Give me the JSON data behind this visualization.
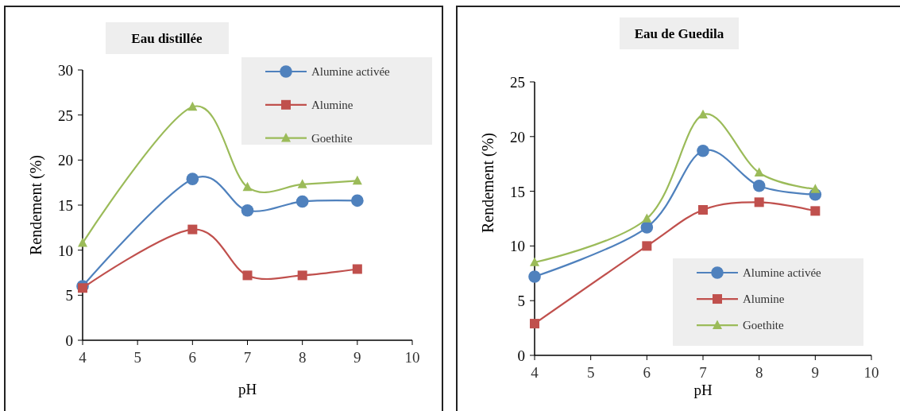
{
  "chart_data": [
    {
      "type": "line",
      "title": "Eau distillée",
      "xlabel": "pH",
      "ylabel": "Rendement (%)",
      "x": [
        4,
        6,
        7,
        8,
        9
      ],
      "xlim": [
        4,
        10
      ],
      "xticks": [
        4,
        5,
        6,
        7,
        8,
        9,
        10
      ],
      "ylim": [
        0,
        30
      ],
      "yticks": [
        0,
        5,
        10,
        15,
        20,
        25,
        30
      ],
      "legend": "top right",
      "grid": false,
      "series": [
        {
          "name": "Alumine activée",
          "color": "#4f81bd",
          "marker": "circle",
          "values": [
            6.0,
            17.9,
            14.4,
            15.4,
            15.5
          ]
        },
        {
          "name": "Alumine",
          "color": "#c0504d",
          "marker": "square",
          "values": [
            5.8,
            12.3,
            7.2,
            7.2,
            7.9
          ]
        },
        {
          "name": "Goethite",
          "color": "#9bbb59",
          "marker": "triangle",
          "values": [
            10.8,
            25.9,
            17.0,
            17.3,
            17.7
          ]
        }
      ]
    },
    {
      "type": "line",
      "title": "Eau de Guedila",
      "xlabel": "pH",
      "ylabel": "Rendement (%)",
      "x": [
        4,
        6,
        7,
        8,
        9
      ],
      "xlim": [
        4,
        10
      ],
      "xticks": [
        4,
        5,
        6,
        7,
        8,
        9,
        10
      ],
      "ylim": [
        0,
        25
      ],
      "yticks": [
        0,
        5,
        10,
        15,
        20,
        25
      ],
      "legend": "bottom right",
      "grid": false,
      "series": [
        {
          "name": "Alumine activée",
          "color": "#4f81bd",
          "marker": "circle",
          "values": [
            7.2,
            11.7,
            18.7,
            15.5,
            14.7
          ]
        },
        {
          "name": "Alumine",
          "color": "#c0504d",
          "marker": "square",
          "values": [
            2.9,
            10.0,
            13.3,
            14.0,
            13.2
          ]
        },
        {
          "name": "Goethite",
          "color": "#9bbb59",
          "marker": "triangle",
          "values": [
            8.5,
            12.5,
            22.0,
            16.7,
            15.2
          ]
        }
      ]
    }
  ]
}
